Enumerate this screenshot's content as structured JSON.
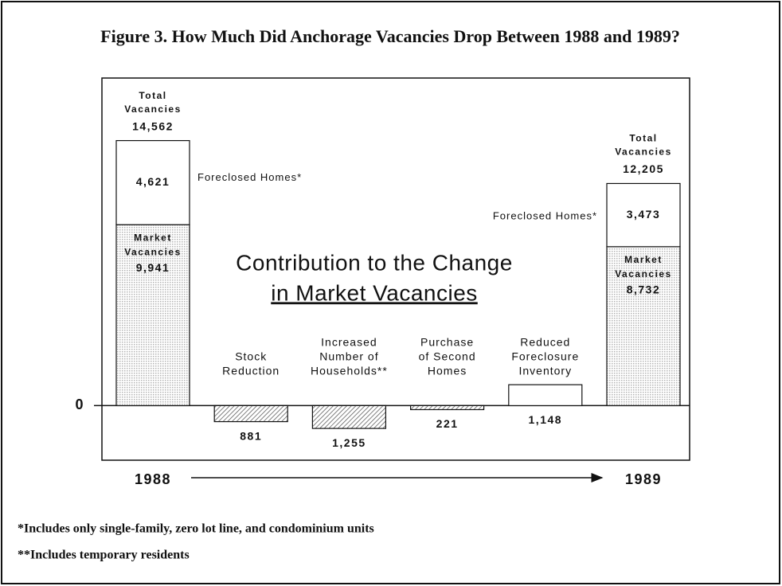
{
  "chart_data": {
    "type": "waterfall",
    "title": "Figure 3.  How Much Did Anchorage Vacancies Drop Between 1988 and 1989?",
    "annotation": [
      "Contribution to the Change",
      "in Market Vacancies"
    ],
    "categories": [
      "1988",
      [
        "Stock",
        "Reduction"
      ],
      [
        "Increased",
        "Number of",
        "Households**"
      ],
      [
        "Purchase",
        "of Second",
        "Homes"
      ],
      [
        "Reduced",
        "Foreclosure",
        "Inventory"
      ],
      "1989"
    ],
    "series": [
      {
        "name": [
          "Market",
          "Vacancies"
        ],
        "color": "#b4b4b4",
        "values": [
          9941,
          null,
          null,
          null,
          null,
          8732
        ],
        "value_labels": [
          "9,941",
          null,
          null,
          null,
          null,
          "8,732"
        ]
      },
      {
        "name": "Foreclosed Homes*",
        "color": "#ffffff",
        "values": [
          4621,
          null,
          null,
          null,
          null,
          3473
        ],
        "value_labels": [
          "4,621",
          null,
          null,
          null,
          null,
          "3,473"
        ]
      },
      {
        "name": "Contribution to the Change in Market Vacancies",
        "color": "#555555",
        "values": [
          null,
          -881,
          -1255,
          -221,
          1148,
          null
        ],
        "value_labels": [
          null,
          "881",
          "1,255",
          "221",
          "1,148",
          null
        ]
      }
    ],
    "totals": {
      "name": [
        "Total",
        "Vacancies"
      ],
      "values": [
        14562,
        null,
        null,
        null,
        null,
        12205
      ],
      "value_labels": [
        "14,562",
        null,
        null,
        null,
        null,
        "12,205"
      ]
    },
    "ylim": [
      -3000,
      18000
    ],
    "yticks": [
      0
    ],
    "footnotes": [
      "*Includes only single-family, zero lot line, and condominium units",
      "**Includes temporary residents"
    ]
  }
}
